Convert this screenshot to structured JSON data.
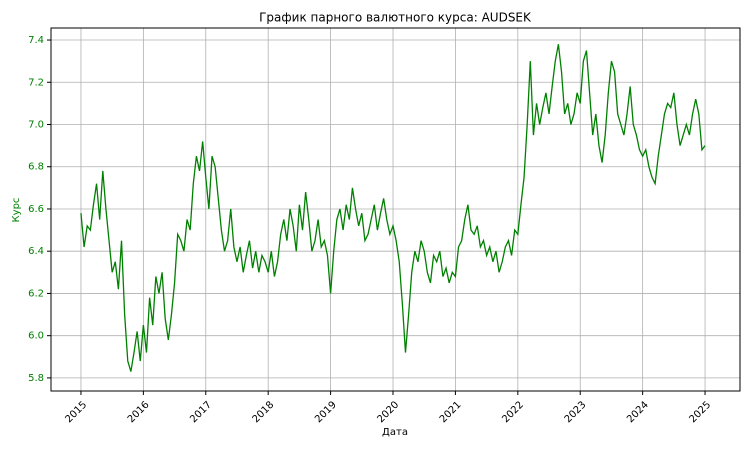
{
  "chart_data": {
    "type": "line",
    "title": "График парного валютного курса: AUDSEK",
    "x_label": "Дата",
    "y_label": "Курс",
    "label_color": "#008000",
    "grid": true,
    "xlim": [
      2014.52,
      2025.56
    ],
    "ylim": [
      5.738,
      7.457
    ],
    "xticks": [
      2015,
      2016,
      2017,
      2018,
      2019,
      2020,
      2021,
      2022,
      2023,
      2024,
      2025
    ],
    "yticks": [
      5.8,
      {
        "value": 6,
        "label": "6.0"
      },
      6.2,
      6.4,
      6.6,
      6.8,
      {
        "value": 7,
        "label": "7.0"
      },
      7.2,
      7.4
    ],
    "x": [
      2015.0,
      2015.05,
      2015.1,
      2015.15,
      2015.2,
      2015.25,
      2015.3,
      2015.35,
      2015.4,
      2015.45,
      2015.5,
      2015.55,
      2015.6,
      2015.65,
      2015.7,
      2015.75,
      2015.8,
      2015.85,
      2015.9,
      2015.95,
      2016.0,
      2016.05,
      2016.1,
      2016.15,
      2016.2,
      2016.25,
      2016.3,
      2016.35,
      2016.4,
      2016.45,
      2016.5,
      2016.55,
      2016.6,
      2016.65,
      2016.7,
      2016.75,
      2016.8,
      2016.85,
      2016.9,
      2016.95,
      2017.0,
      2017.05,
      2017.1,
      2017.15,
      2017.2,
      2017.25,
      2017.3,
      2017.35,
      2017.4,
      2017.45,
      2017.5,
      2017.55,
      2017.6,
      2017.65,
      2017.7,
      2017.75,
      2017.8,
      2017.85,
      2017.9,
      2017.95,
      2018.0,
      2018.05,
      2018.1,
      2018.15,
      2018.2,
      2018.25,
      2018.3,
      2018.35,
      2018.4,
      2018.45,
      2018.5,
      2018.55,
      2018.6,
      2018.65,
      2018.7,
      2018.75,
      2018.8,
      2018.85,
      2018.9,
      2018.95,
      2019.0,
      2019.05,
      2019.1,
      2019.15,
      2019.2,
      2019.25,
      2019.3,
      2019.35,
      2019.4,
      2019.45,
      2019.5,
      2019.55,
      2019.6,
      2019.65,
      2019.7,
      2019.75,
      2019.8,
      2019.85,
      2019.9,
      2019.95,
      2020.0,
      2020.05,
      2020.1,
      2020.15,
      2020.2,
      2020.25,
      2020.3,
      2020.35,
      2020.4,
      2020.45,
      2020.5,
      2020.55,
      2020.6,
      2020.65,
      2020.7,
      2020.75,
      2020.8,
      2020.85,
      2020.9,
      2020.95,
      2021.0,
      2021.05,
      2021.1,
      2021.15,
      2021.2,
      2021.25,
      2021.3,
      2021.35,
      2021.4,
      2021.45,
      2021.5,
      2021.55,
      2021.6,
      2021.65,
      2021.7,
      2021.75,
      2021.8,
      2021.85,
      2021.9,
      2021.95,
      2022.0,
      2022.05,
      2022.1,
      2022.15,
      2022.2,
      2022.25,
      2022.3,
      2022.35,
      2022.4,
      2022.45,
      2022.5,
      2022.55,
      2022.6,
      2022.65,
      2022.7,
      2022.75,
      2022.8,
      2022.85,
      2022.9,
      2022.95,
      2023.0,
      2023.05,
      2023.1,
      2023.15,
      2023.2,
      2023.25,
      2023.3,
      2023.35,
      2023.4,
      2023.45,
      2023.5,
      2023.55,
      2023.6,
      2023.65,
      2023.7,
      2023.75,
      2023.8,
      2023.85,
      2023.9,
      2023.95,
      2024.0,
      2024.05,
      2024.1,
      2024.15,
      2024.2,
      2024.25,
      2024.3,
      2024.35,
      2024.4,
      2024.45,
      2024.5,
      2024.55,
      2024.6,
      2024.65,
      2024.7,
      2024.75,
      2024.8,
      2024.85,
      2024.9,
      2024.95,
      2025.0
    ],
    "series": [
      {
        "name": "AUDSEK",
        "color": "#008000",
        "values": [
          6.58,
          6.42,
          6.52,
          6.5,
          6.62,
          6.72,
          6.55,
          6.78,
          6.6,
          6.45,
          6.3,
          6.35,
          6.22,
          6.45,
          6.1,
          5.88,
          5.83,
          5.92,
          6.02,
          5.88,
          6.05,
          5.92,
          6.18,
          6.05,
          6.28,
          6.2,
          6.3,
          6.08,
          5.98,
          6.1,
          6.25,
          6.48,
          6.45,
          6.4,
          6.55,
          6.5,
          6.72,
          6.85,
          6.78,
          6.92,
          6.75,
          6.6,
          6.85,
          6.8,
          6.65,
          6.5,
          6.4,
          6.45,
          6.6,
          6.42,
          6.35,
          6.42,
          6.3,
          6.38,
          6.45,
          6.32,
          6.4,
          6.3,
          6.38,
          6.35,
          6.3,
          6.4,
          6.28,
          6.35,
          6.48,
          6.55,
          6.45,
          6.6,
          6.52,
          6.4,
          6.62,
          6.5,
          6.68,
          6.55,
          6.4,
          6.45,
          6.55,
          6.42,
          6.45,
          6.38,
          6.2,
          6.4,
          6.55,
          6.6,
          6.5,
          6.62,
          6.55,
          6.7,
          6.6,
          6.52,
          6.58,
          6.45,
          6.48,
          6.55,
          6.62,
          6.5,
          6.58,
          6.65,
          6.55,
          6.48,
          6.52,
          6.45,
          6.35,
          6.15,
          5.92,
          6.1,
          6.3,
          6.4,
          6.35,
          6.45,
          6.4,
          6.3,
          6.25,
          6.38,
          6.35,
          6.4,
          6.28,
          6.32,
          6.25,
          6.3,
          6.28,
          6.42,
          6.45,
          6.55,
          6.62,
          6.5,
          6.48,
          6.52,
          6.42,
          6.45,
          6.38,
          6.42,
          6.35,
          6.4,
          6.3,
          6.35,
          6.42,
          6.45,
          6.38,
          6.5,
          6.48,
          6.62,
          6.75,
          7.0,
          7.3,
          6.95,
          7.1,
          7.0,
          7.08,
          7.15,
          7.05,
          7.18,
          7.3,
          7.38,
          7.25,
          7.05,
          7.1,
          7.0,
          7.05,
          7.15,
          7.1,
          7.3,
          7.35,
          7.15,
          6.95,
          7.05,
          6.9,
          6.82,
          6.95,
          7.15,
          7.3,
          7.25,
          7.05,
          7.0,
          6.95,
          7.05,
          7.18,
          7.0,
          6.95,
          6.88,
          6.85,
          6.88,
          6.8,
          6.75,
          6.72,
          6.85,
          6.95,
          7.05,
          7.1,
          7.08,
          7.15,
          7.0,
          6.9,
          6.95,
          7.0,
          6.95,
          7.05,
          7.12,
          7.05,
          6.88,
          6.9
        ]
      }
    ]
  }
}
